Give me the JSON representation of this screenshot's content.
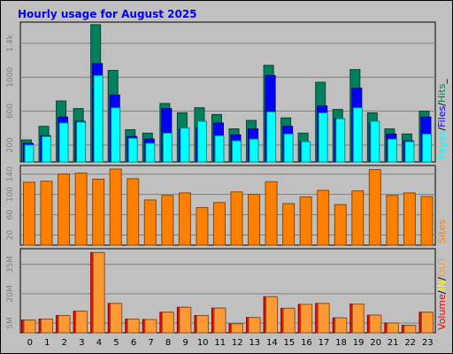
{
  "chart_data": [
    {
      "type": "bar",
      "title": "Hourly usage for August 2025",
      "categories": [
        "0",
        "1",
        "2",
        "3",
        "4",
        "5",
        "6",
        "7",
        "8",
        "9",
        "10",
        "11",
        "12",
        "13",
        "14",
        "15",
        "16",
        "17",
        "18",
        "19",
        "20",
        "21",
        "22",
        "23"
      ],
      "ylim": [
        0,
        1650
      ],
      "yticks": [
        200,
        600,
        1000,
        1400
      ],
      "ytick_labels": [
        "200",
        "600",
        "1000",
        "1.4k"
      ],
      "legend_position": "right",
      "grid": true,
      "series": [
        {
          "name": "Hits",
          "color": "#00805c",
          "values": [
            260,
            420,
            720,
            630,
            1620,
            1080,
            380,
            340,
            690,
            580,
            640,
            560,
            390,
            490,
            1140,
            520,
            340,
            940,
            620,
            1090,
            580,
            390,
            330,
            600
          ]
        },
        {
          "name": "Files",
          "color": "#0000ff",
          "values": [
            220,
            310,
            530,
            480,
            1160,
            790,
            300,
            270,
            630,
            390,
            400,
            460,
            320,
            390,
            1020,
            420,
            240,
            660,
            510,
            870,
            460,
            330,
            250,
            530
          ]
        },
        {
          "name": "Pages",
          "color": "#00ffff",
          "values": [
            200,
            300,
            460,
            470,
            1020,
            640,
            280,
            220,
            340,
            400,
            480,
            310,
            250,
            270,
            590,
            330,
            240,
            580,
            510,
            640,
            480,
            270,
            240,
            330
          ]
        }
      ],
      "legend_separators": [
        "/",
        "/",
        "_"
      ]
    },
    {
      "type": "bar",
      "ylim": [
        0,
        157
      ],
      "yticks": [
        20,
        60,
        100,
        140
      ],
      "ytick_labels": [
        "20",
        "60",
        "100",
        "140"
      ],
      "legend_position": "right",
      "grid": true,
      "series": [
        {
          "name": "Sites",
          "color": "#ff8000",
          "values": [
            124,
            126,
            140,
            142,
            130,
            150,
            131,
            89,
            98,
            103,
            74,
            84,
            105,
            100,
            125,
            82,
            95,
            108,
            80,
            107,
            149,
            98,
            103,
            96
          ]
        }
      ]
    },
    {
      "type": "bar",
      "ylim": [
        0,
        43
      ],
      "yticks": [
        5,
        20,
        35
      ],
      "ytick_labels": [
        "5M",
        "20M",
        "35M"
      ],
      "legend_position": "right",
      "grid": true,
      "series": [
        {
          "name": "Volume",
          "color": "#ff0000",
          "values": [
            6.5,
            7,
            8.8,
            11,
            41,
            15,
            7,
            6.8,
            10.5,
            13,
            8.8,
            12.6,
            4.6,
            7.8,
            18.4,
            12.5,
            14.5,
            15,
            7.6,
            14.7,
            9,
            5,
            3.8,
            10.5
          ]
        },
        {
          "name": "IN",
          "color": "#ffff00",
          "values": []
        },
        {
          "name": "OUT",
          "color": "#ff9933",
          "values": [
            6.5,
            7,
            8.8,
            11,
            41,
            15,
            7,
            6.8,
            10.5,
            13,
            8.8,
            12.6,
            4.6,
            7.8,
            18.4,
            12.5,
            14.5,
            15,
            7.6,
            14.7,
            9,
            5,
            3.8,
            10.5
          ]
        }
      ],
      "legend_separators": [
        "/",
        "/"
      ]
    }
  ]
}
